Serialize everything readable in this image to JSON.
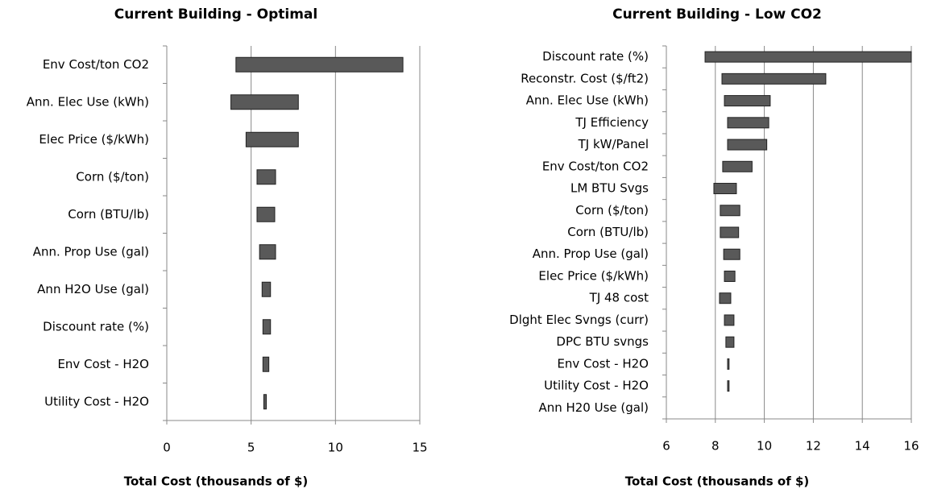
{
  "chart_data": [
    {
      "type": "range-bar",
      "title": "Current Building - Optimal",
      "x_label": "Total Cost (thousands of $)",
      "categories": [
        "Env Cost/ton CO2",
        "Ann. Elec Use (kWh)",
        "Elec Price ($/kWh)",
        "Corn ($/ton)",
        "Corn (BTU/lb)",
        "Ann. Prop Use (gal)",
        "Ann H2O Use (gal)",
        "Discount rate (%)",
        "Env Cost - H2O",
        "Utility Cost - H2O"
      ],
      "values": [
        [
          4.1,
          14.0
        ],
        [
          3.8,
          7.8
        ],
        [
          4.7,
          7.8
        ],
        [
          5.35,
          6.45
        ],
        [
          5.35,
          6.4
        ],
        [
          5.5,
          6.45
        ],
        [
          5.65,
          6.15
        ],
        [
          5.7,
          6.15
        ],
        [
          5.7,
          6.05
        ],
        [
          5.75,
          5.9
        ]
      ],
      "color": "#595959",
      "xlim": [
        0,
        15
      ],
      "xticks": [
        0,
        5,
        10,
        15
      ],
      "grid": true
    },
    {
      "type": "range-bar",
      "title": "Current Building - Low CO2",
      "x_label": "Total Cost (thousands of $)",
      "categories": [
        "Discount rate (%)",
        "Reconstr. Cost ($/ft2)",
        "Ann. Elec Use (kWh)",
        "TJ Efficiency",
        "TJ kW/Panel",
        "Env Cost/ton CO2",
        "LM BTU Svgs",
        "Corn ($/ton)",
        "Corn (BTU/lb)",
        "Ann. Prop Use (gal)",
        "Elec Price ($/kWh)",
        "TJ 48 cost",
        "Dlght Elec Svngs (curr)",
        "DPC BTU svngs",
        "Env Cost - H2O",
        "Utility Cost - H2O",
        "Ann H20 Use (gal)"
      ],
      "values": [
        [
          7.58,
          16.0
        ],
        [
          8.27,
          12.51
        ],
        [
          8.37,
          10.24
        ],
        [
          8.5,
          10.18
        ],
        [
          8.5,
          10.1
        ],
        [
          8.3,
          9.5
        ],
        [
          7.94,
          8.86
        ],
        [
          8.2,
          9.0
        ],
        [
          8.2,
          8.95
        ],
        [
          8.34,
          9.0
        ],
        [
          8.37,
          8.8
        ],
        [
          8.17,
          8.63
        ],
        [
          8.37,
          8.76
        ],
        [
          8.43,
          8.76
        ],
        [
          8.5,
          8.56
        ],
        [
          8.5,
          8.56
        ],
        [
          null,
          null
        ]
      ],
      "color": "#595959",
      "xlim": [
        6,
        16
      ],
      "xticks": [
        6,
        8,
        10,
        12,
        14,
        16
      ],
      "grid": true
    }
  ]
}
